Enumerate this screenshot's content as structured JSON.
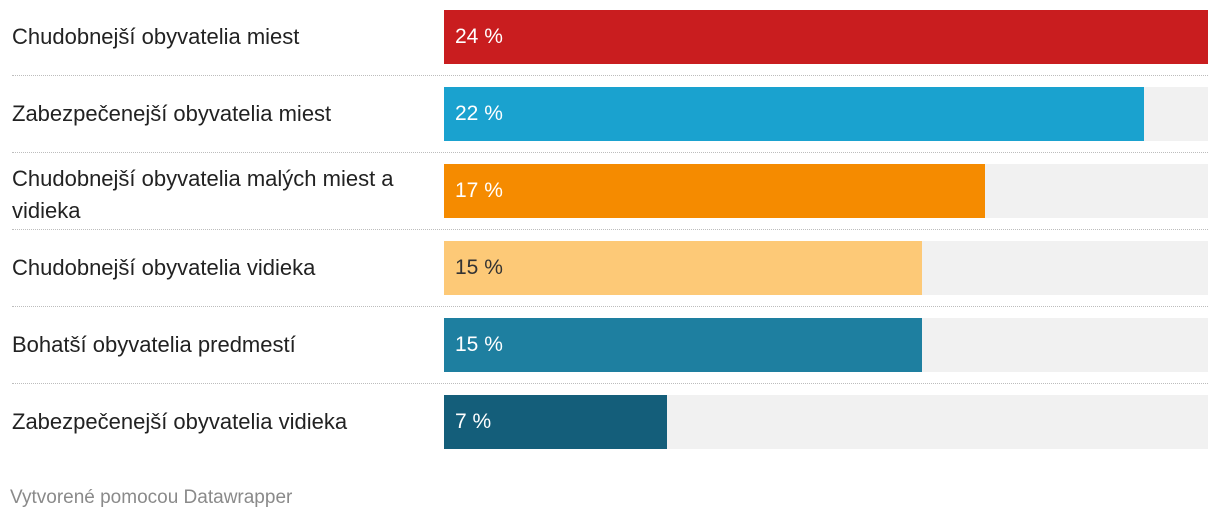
{
  "chart_data": {
    "type": "bar",
    "orientation": "horizontal",
    "categories": [
      "Chudobnejší obyvatelia miest",
      "Zabezpečenejší obyvatelia miest",
      "Chudobnejší obyvatelia malých miest a vidieka",
      "Chudobnejší obyvatelia vidieka",
      "Bohatší obyvatelia predmestí",
      "Zabezpečenejší obyvatelia vidieka"
    ],
    "values": [
      24,
      22,
      17,
      15,
      15,
      7
    ],
    "value_labels": [
      "24 %",
      "22 %",
      "17 %",
      "15 %",
      "15 %",
      "7 %"
    ],
    "colors": [
      "#c91d1f",
      "#1aa2cf",
      "#f58b00",
      "#fdc977",
      "#1e7fa0",
      "#145e7a"
    ],
    "track_color": "#f1f1f1",
    "xlim": [
      0,
      24
    ],
    "title": "",
    "xlabel": "",
    "ylabel": ""
  },
  "footer": {
    "credit": "Vytvorené pomocou Datawrapper"
  }
}
